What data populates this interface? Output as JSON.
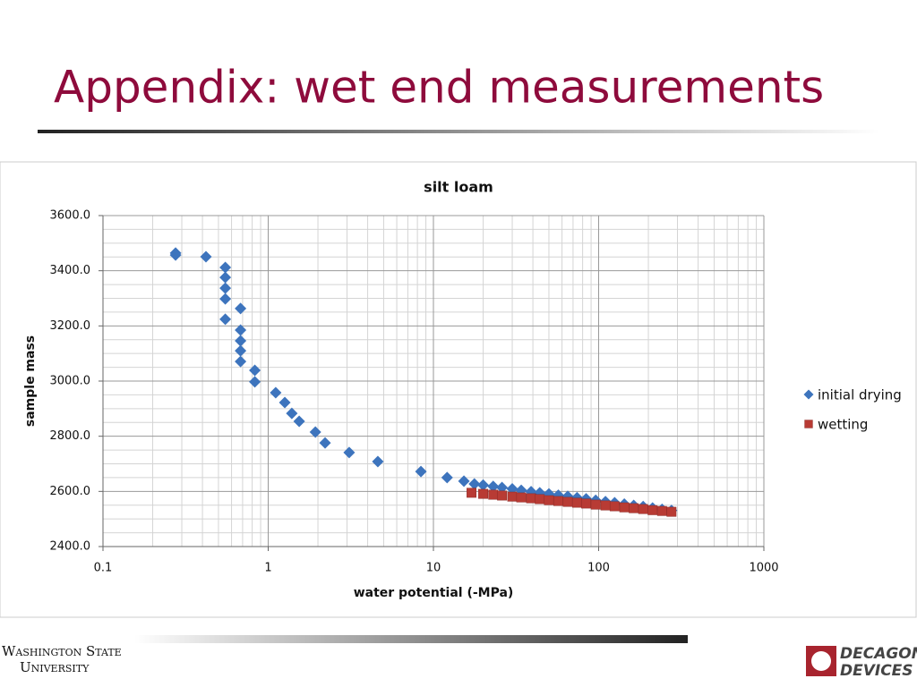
{
  "slide": {
    "title": "Appendix: wet end measurements",
    "footer_left": [
      "Washington State",
      "University"
    ],
    "footer_right": [
      "DECAGON",
      "DEVICES"
    ]
  },
  "chart_data": {
    "type": "scatter",
    "title": "silt loam",
    "x_label": "water potential (-MPa)",
    "y_label": "sample mass",
    "x_log": true,
    "grid": true,
    "minor_grid": true,
    "legend": "right",
    "xlim": [
      0.1,
      1000
    ],
    "xticks": [
      0.1,
      1,
      10,
      100,
      1000
    ],
    "ylim": [
      2400,
      3600
    ],
    "yticks": [
      {
        "value": 2400,
        "label": "2400.0"
      },
      {
        "value": 2600,
        "label": "2600.0"
      },
      {
        "value": 2800,
        "label": "2800.0"
      },
      {
        "value": 3000,
        "label": "3000.0"
      },
      {
        "value": 3200,
        "label": "3200.0"
      },
      {
        "value": 3400,
        "label": "3400.0"
      },
      {
        "value": 3600,
        "label": "3600.0"
      }
    ],
    "series": [
      {
        "name": "initial drying",
        "color": "#3d74bd",
        "marker": "diamond",
        "x": [
          0.275,
          0.275,
          0.42,
          0.55,
          0.55,
          0.55,
          0.55,
          0.55,
          0.68,
          0.68,
          0.68,
          0.68,
          0.68,
          0.83,
          0.83,
          1.11,
          1.26,
          1.39,
          1.54,
          1.93,
          2.21,
          3.09,
          4.61,
          8.4,
          12.1,
          15.3,
          17.7,
          20,
          23,
          26,
          30,
          34,
          39,
          44,
          50,
          57,
          65,
          74,
          84,
          96,
          110,
          125,
          143,
          163,
          186,
          212,
          242,
          276
        ],
        "values": [
          3464,
          3457,
          3451,
          3412,
          3376,
          3337,
          3298,
          3224,
          3263,
          3185,
          3146,
          3110,
          3071,
          3039,
          2997,
          2958,
          2922,
          2883,
          2854,
          2815,
          2776,
          2741,
          2708,
          2672,
          2650,
          2637,
          2627,
          2623,
          2618,
          2614,
          2609,
          2604,
          2599,
          2595,
          2591,
          2586,
          2582,
          2577,
          2573,
          2568,
          2563,
          2559,
          2554,
          2549,
          2545,
          2540,
          2535,
          2531
        ]
      },
      {
        "name": "wetting",
        "color": "#b83b34",
        "marker": "square",
        "x": [
          17,
          20,
          23,
          26,
          30,
          34,
          39,
          44,
          50,
          57,
          65,
          74,
          84,
          96,
          110,
          125,
          143,
          163,
          186,
          212,
          242,
          276
        ],
        "values": [
          2595,
          2591,
          2588,
          2585,
          2581,
          2578,
          2575,
          2572,
          2568,
          2565,
          2562,
          2559,
          2556,
          2552,
          2549,
          2546,
          2542,
          2539,
          2536,
          2532,
          2529,
          2526
        ]
      }
    ]
  }
}
